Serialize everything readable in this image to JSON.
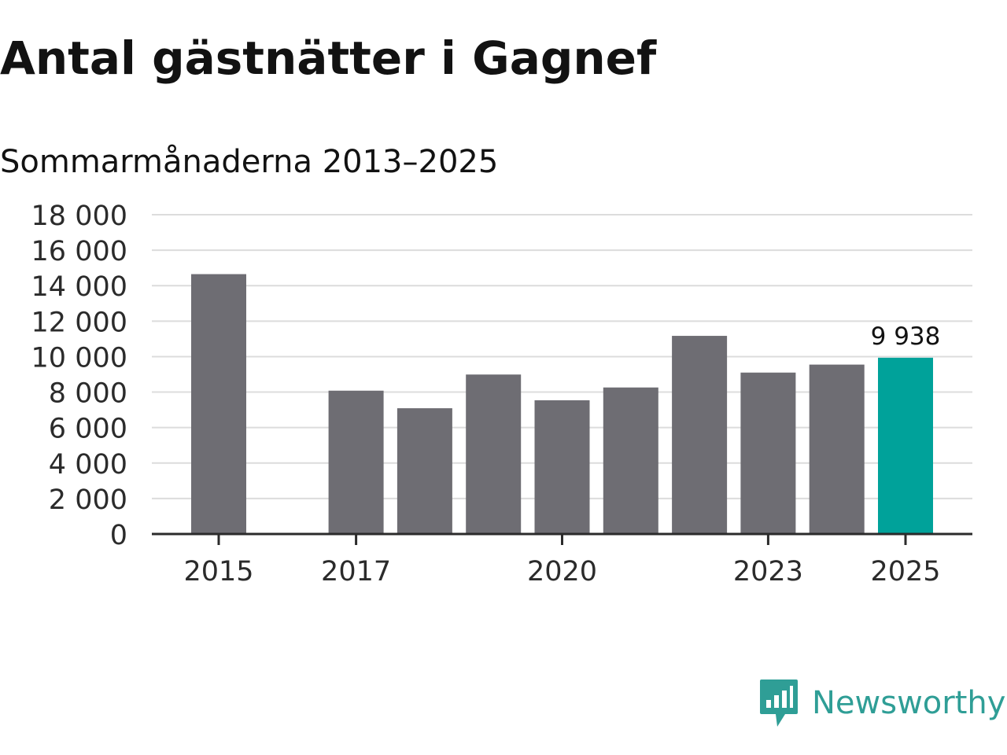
{
  "title": "Antal gästnätter i Gagnef",
  "subtitle": "Sommarmånaderna 2013–2025",
  "logo": {
    "text": "Newsworthy",
    "icon": "newsworthy-chart-icon",
    "color": "#2f9e96"
  },
  "colors": {
    "bar": "#6e6d73",
    "highlight": "#00a29a",
    "grid": "#dcdcdc",
    "axis": "#2b2b2b"
  },
  "chart_data": {
    "type": "bar",
    "title": "Antal gästnätter i Gagnef",
    "subtitle": "Sommarmånaderna 2013–2025",
    "x": [
      2015,
      2016,
      2017,
      2018,
      2019,
      2020,
      2021,
      2022,
      2023,
      2024,
      2025
    ],
    "values": [
      14650,
      null,
      8080,
      7090,
      8990,
      7540,
      8260,
      11170,
      9100,
      9550,
      9938
    ],
    "highlight": 2025,
    "data_labels": [
      {
        "x": 2025,
        "label": "9 938"
      }
    ],
    "x_ticks": [
      "2015",
      "2017",
      "2020",
      "2023",
      "2025"
    ],
    "x_tick_values": [
      2015,
      2017,
      2020,
      2023,
      2025
    ],
    "y_ticks": [
      "0",
      "2 000",
      "4 000",
      "6 000",
      "8 000",
      "10 000",
      "12 000",
      "14 000",
      "16 000",
      "18 000"
    ],
    "y_tick_values": [
      0,
      2000,
      4000,
      6000,
      8000,
      10000,
      12000,
      14000,
      16000,
      18000
    ],
    "ylim": [
      0,
      18000
    ],
    "xlabel": "",
    "ylabel": "",
    "grid": true,
    "legend": "none"
  }
}
